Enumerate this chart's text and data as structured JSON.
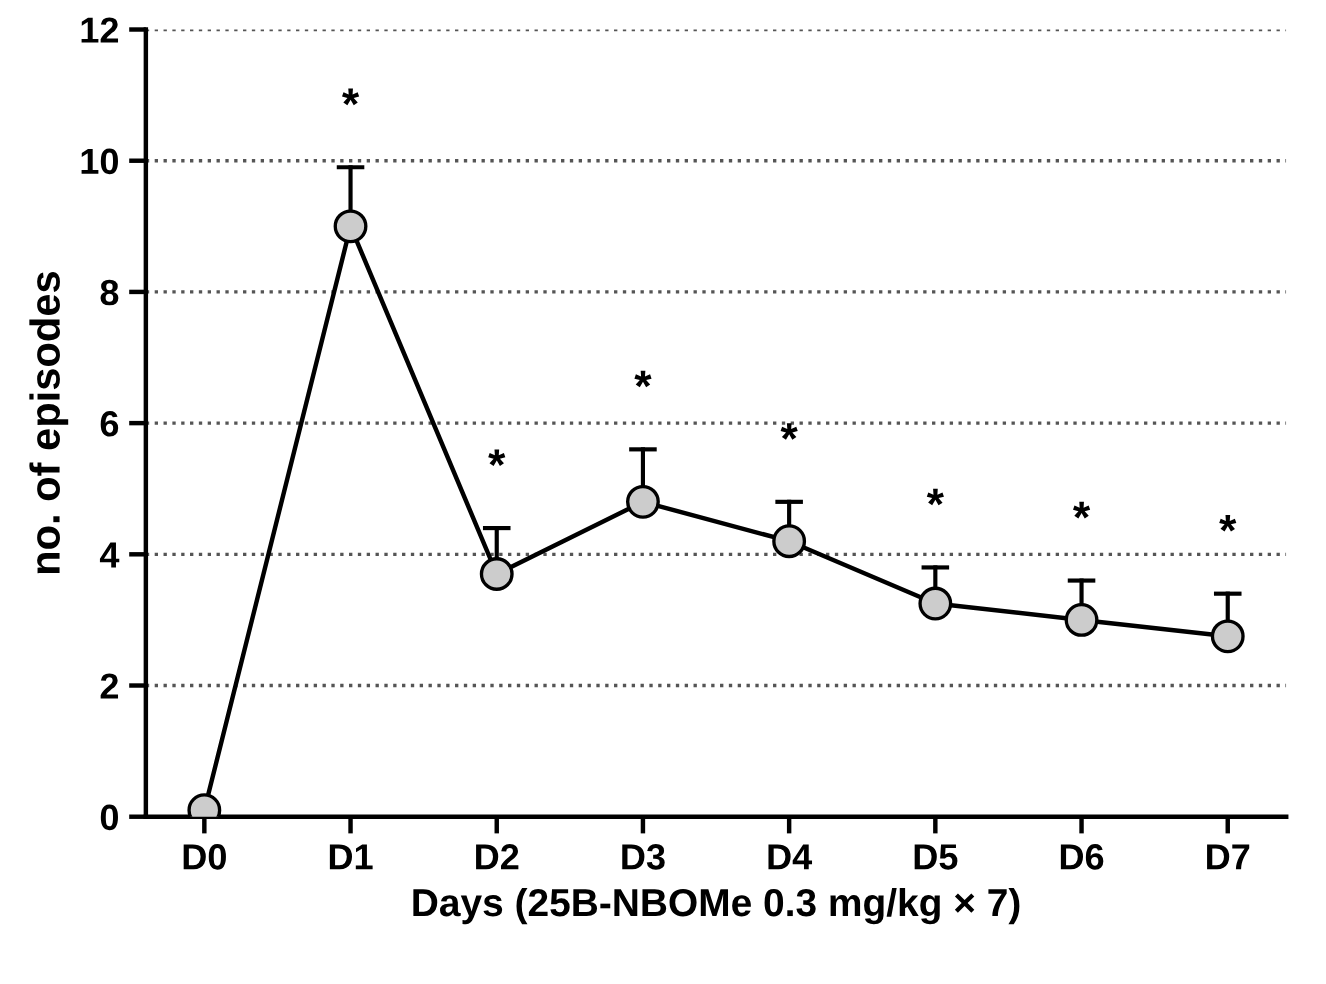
{
  "chart_data": {
    "type": "line",
    "xlabel": "Days (25B-NBOMe 0.3 mg/kg × 7)",
    "ylabel": "no. of episodes",
    "categories": [
      "D0",
      "D1",
      "D2",
      "D3",
      "D4",
      "D5",
      "D6",
      "D7"
    ],
    "series": [
      {
        "color": "#000000",
        "values": [
          0.1,
          9.0,
          3.7,
          4.8,
          4.2,
          3.25,
          3.0,
          2.75
        ],
        "errors": [
          null,
          [
            9.0,
            9.9
          ],
          [
            3.7,
            4.4
          ],
          [
            4.8,
            5.6
          ],
          [
            4.2,
            4.8
          ],
          [
            3.25,
            3.8
          ],
          [
            3.0,
            3.6
          ],
          [
            2.75,
            3.4
          ]
        ]
      }
    ],
    "ylim": [
      0,
      12
    ],
    "yticks": [
      0,
      2,
      4,
      6,
      8,
      10,
      12
    ],
    "grid": "y",
    "marker": "circle",
    "line_style": "solid",
    "annotations": [
      "*",
      "*",
      "*",
      "*",
      "*",
      "*",
      "*"
    ]
  }
}
